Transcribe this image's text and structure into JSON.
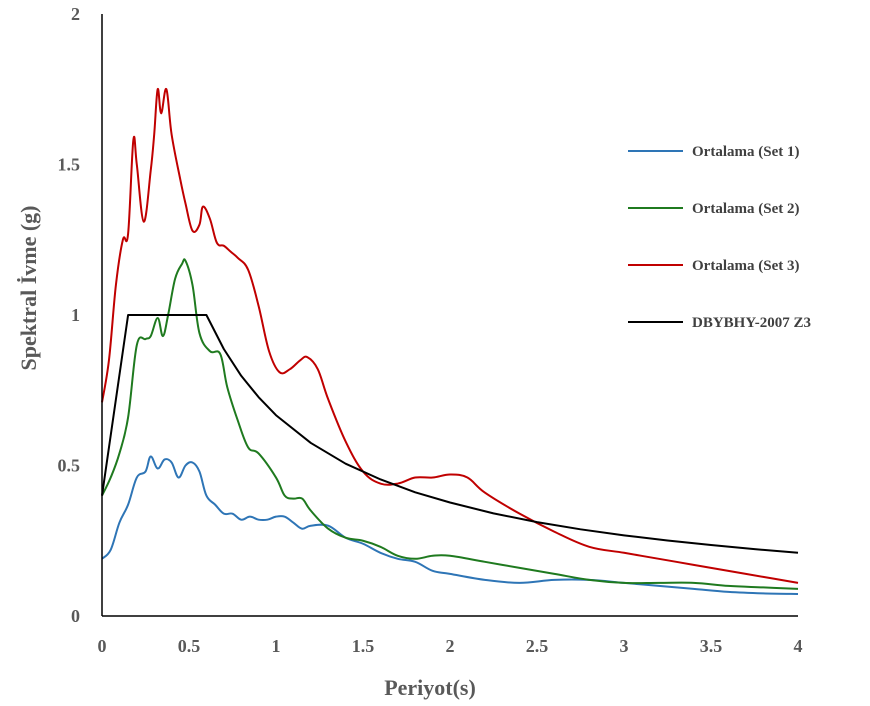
{
  "chart_data": {
    "type": "line",
    "xlabel": "Periyot(s)",
    "ylabel": "Spektral İvme  (g)",
    "xlim": [
      0,
      4
    ],
    "ylim": [
      0,
      2
    ],
    "x_ticks": [
      "0",
      "0.5",
      "1",
      "1.5",
      "2",
      "2.5",
      "3",
      "3.5",
      "4"
    ],
    "y_ticks": [
      "0",
      "0.5",
      "1",
      "1.5",
      "2"
    ],
    "grid": false,
    "legend_position": "right",
    "series": [
      {
        "name": "Ortalama (Set 1)",
        "color": "#2e75b6",
        "points": [
          [
            0,
            0.19
          ],
          [
            0.05,
            0.22
          ],
          [
            0.1,
            0.31
          ],
          [
            0.15,
            0.37
          ],
          [
            0.2,
            0.46
          ],
          [
            0.25,
            0.48
          ],
          [
            0.28,
            0.53
          ],
          [
            0.32,
            0.49
          ],
          [
            0.36,
            0.52
          ],
          [
            0.4,
            0.51
          ],
          [
            0.44,
            0.46
          ],
          [
            0.48,
            0.5
          ],
          [
            0.52,
            0.51
          ],
          [
            0.56,
            0.48
          ],
          [
            0.6,
            0.4
          ],
          [
            0.65,
            0.37
          ],
          [
            0.7,
            0.34
          ],
          [
            0.75,
            0.34
          ],
          [
            0.8,
            0.32
          ],
          [
            0.85,
            0.33
          ],
          [
            0.9,
            0.32
          ],
          [
            0.95,
            0.32
          ],
          [
            1.0,
            0.33
          ],
          [
            1.05,
            0.33
          ],
          [
            1.1,
            0.31
          ],
          [
            1.15,
            0.29
          ],
          [
            1.2,
            0.3
          ],
          [
            1.3,
            0.3
          ],
          [
            1.4,
            0.26
          ],
          [
            1.5,
            0.24
          ],
          [
            1.6,
            0.21
          ],
          [
            1.7,
            0.19
          ],
          [
            1.8,
            0.18
          ],
          [
            1.9,
            0.15
          ],
          [
            2.0,
            0.14
          ],
          [
            2.2,
            0.12
          ],
          [
            2.4,
            0.11
          ],
          [
            2.6,
            0.12
          ],
          [
            2.8,
            0.12
          ],
          [
            3.0,
            0.11
          ],
          [
            3.2,
            0.1
          ],
          [
            3.4,
            0.09
          ],
          [
            3.6,
            0.08
          ],
          [
            3.8,
            0.075
          ],
          [
            4.0,
            0.073
          ]
        ]
      },
      {
        "name": "Ortalama (Set 2)",
        "color": "#1f7a1f",
        "points": [
          [
            0,
            0.4
          ],
          [
            0.05,
            0.46
          ],
          [
            0.1,
            0.54
          ],
          [
            0.15,
            0.66
          ],
          [
            0.2,
            0.9
          ],
          [
            0.25,
            0.92
          ],
          [
            0.28,
            0.93
          ],
          [
            0.32,
            0.99
          ],
          [
            0.35,
            0.93
          ],
          [
            0.38,
            1.0
          ],
          [
            0.42,
            1.12
          ],
          [
            0.46,
            1.17
          ],
          [
            0.48,
            1.18
          ],
          [
            0.52,
            1.1
          ],
          [
            0.56,
            0.94
          ],
          [
            0.62,
            0.88
          ],
          [
            0.68,
            0.87
          ],
          [
            0.72,
            0.76
          ],
          [
            0.78,
            0.65
          ],
          [
            0.84,
            0.56
          ],
          [
            0.9,
            0.54
          ],
          [
            1.0,
            0.46
          ],
          [
            1.05,
            0.4
          ],
          [
            1.1,
            0.39
          ],
          [
            1.15,
            0.39
          ],
          [
            1.2,
            0.35
          ],
          [
            1.3,
            0.29
          ],
          [
            1.4,
            0.26
          ],
          [
            1.5,
            0.25
          ],
          [
            1.6,
            0.23
          ],
          [
            1.7,
            0.2
          ],
          [
            1.8,
            0.19
          ],
          [
            1.9,
            0.2
          ],
          [
            2.0,
            0.2
          ],
          [
            2.2,
            0.18
          ],
          [
            2.4,
            0.16
          ],
          [
            2.6,
            0.14
          ],
          [
            2.8,
            0.12
          ],
          [
            3.0,
            0.11
          ],
          [
            3.2,
            0.11
          ],
          [
            3.4,
            0.11
          ],
          [
            3.6,
            0.1
          ],
          [
            3.8,
            0.095
          ],
          [
            4.0,
            0.09
          ]
        ]
      },
      {
        "name": "Ortalama (Set 3)",
        "color": "#c00000",
        "points": [
          [
            0,
            0.71
          ],
          [
            0.04,
            0.85
          ],
          [
            0.08,
            1.1
          ],
          [
            0.12,
            1.25
          ],
          [
            0.15,
            1.27
          ],
          [
            0.18,
            1.58
          ],
          [
            0.2,
            1.5
          ],
          [
            0.24,
            1.31
          ],
          [
            0.28,
            1.48
          ],
          [
            0.3,
            1.6
          ],
          [
            0.32,
            1.75
          ],
          [
            0.34,
            1.67
          ],
          [
            0.37,
            1.75
          ],
          [
            0.4,
            1.6
          ],
          [
            0.45,
            1.45
          ],
          [
            0.48,
            1.37
          ],
          [
            0.52,
            1.28
          ],
          [
            0.56,
            1.3
          ],
          [
            0.58,
            1.36
          ],
          [
            0.62,
            1.32
          ],
          [
            0.66,
            1.24
          ],
          [
            0.7,
            1.23
          ],
          [
            0.74,
            1.21
          ],
          [
            0.78,
            1.19
          ],
          [
            0.84,
            1.15
          ],
          [
            0.9,
            1.03
          ],
          [
            0.96,
            0.88
          ],
          [
            1.02,
            0.81
          ],
          [
            1.08,
            0.82
          ],
          [
            1.14,
            0.85
          ],
          [
            1.18,
            0.86
          ],
          [
            1.24,
            0.82
          ],
          [
            1.3,
            0.72
          ],
          [
            1.4,
            0.58
          ],
          [
            1.5,
            0.48
          ],
          [
            1.6,
            0.44
          ],
          [
            1.7,
            0.44
          ],
          [
            1.8,
            0.46
          ],
          [
            1.9,
            0.46
          ],
          [
            2.0,
            0.47
          ],
          [
            2.1,
            0.46
          ],
          [
            2.2,
            0.41
          ],
          [
            2.4,
            0.34
          ],
          [
            2.6,
            0.28
          ],
          [
            2.8,
            0.23
          ],
          [
            3.0,
            0.21
          ],
          [
            3.2,
            0.19
          ],
          [
            3.4,
            0.17
          ],
          [
            3.6,
            0.15
          ],
          [
            3.8,
            0.13
          ],
          [
            4.0,
            0.11
          ]
        ]
      },
      {
        "name": "DBYBHY-2007 Z3",
        "color": "#000000",
        "points": [
          [
            0,
            0.4
          ],
          [
            0.15,
            1.0
          ],
          [
            0.6,
            1.0
          ],
          [
            0.7,
            0.887
          ],
          [
            0.8,
            0.798
          ],
          [
            0.9,
            0.727
          ],
          [
            1.0,
            0.667
          ],
          [
            1.2,
            0.575
          ],
          [
            1.4,
            0.506
          ],
          [
            1.6,
            0.454
          ],
          [
            1.8,
            0.411
          ],
          [
            2.0,
            0.377
          ],
          [
            2.25,
            0.341
          ],
          [
            2.5,
            0.312
          ],
          [
            2.75,
            0.288
          ],
          [
            3.0,
            0.268
          ],
          [
            3.25,
            0.251
          ],
          [
            3.5,
            0.236
          ],
          [
            3.75,
            0.222
          ],
          [
            4.0,
            0.21
          ]
        ]
      }
    ]
  }
}
